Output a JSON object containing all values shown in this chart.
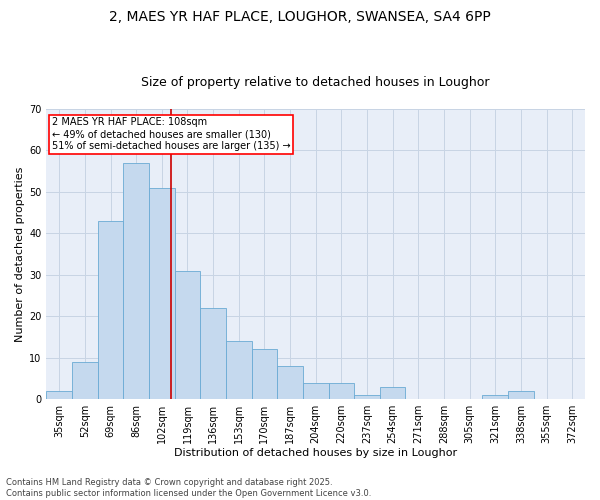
{
  "title_line1": "2, MAES YR HAF PLACE, LOUGHOR, SWANSEA, SA4 6PP",
  "title_line2": "Size of property relative to detached houses in Loughor",
  "xlabel": "Distribution of detached houses by size in Loughor",
  "ylabel": "Number of detached properties",
  "bar_labels": [
    "35sqm",
    "52sqm",
    "69sqm",
    "86sqm",
    "102sqm",
    "119sqm",
    "136sqm",
    "153sqm",
    "170sqm",
    "187sqm",
    "204sqm",
    "220sqm",
    "237sqm",
    "254sqm",
    "271sqm",
    "288sqm",
    "305sqm",
    "321sqm",
    "338sqm",
    "355sqm",
    "372sqm"
  ],
  "bar_values": [
    2,
    9,
    43,
    57,
    51,
    31,
    22,
    14,
    12,
    8,
    4,
    4,
    1,
    3,
    0,
    0,
    0,
    1,
    2,
    0,
    0
  ],
  "bar_color": "#c5d9ee",
  "bar_edge_color": "#6aaad4",
  "grid_color": "#c8d4e4",
  "background_color": "#e8eef8",
  "ylim": [
    0,
    70
  ],
  "yticks": [
    0,
    10,
    20,
    30,
    40,
    50,
    60,
    70
  ],
  "property_label": "2 MAES YR HAF PLACE: 108sqm",
  "pct_smaller": "49% of detached houses are smaller (130)",
  "pct_larger": "51% of semi-detached houses are larger (135)",
  "vline_x_index": 4.35,
  "footer_line1": "Contains HM Land Registry data © Crown copyright and database right 2025.",
  "footer_line2": "Contains public sector information licensed under the Open Government Licence v3.0.",
  "title_fontsize": 10,
  "subtitle_fontsize": 9,
  "axis_label_fontsize": 8,
  "tick_fontsize": 7,
  "annotation_fontsize": 7,
  "footer_fontsize": 6
}
